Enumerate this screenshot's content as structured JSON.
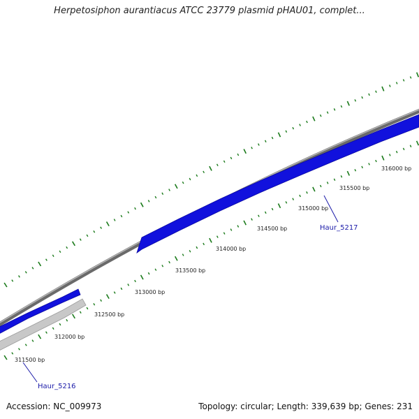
{
  "map": {
    "title": "Herpetosiphon aurantiacus ATCC 23779 plasmid pHAU01, complet...",
    "colors": {
      "backbone": "#8a8a8a",
      "gene_forward": "#1111dd",
      "gene_reverse": "#c8c8c8",
      "ticks": "#1a7a1a",
      "gene_label": "#1a1aa8"
    },
    "tick_labels": [
      "311500 bp",
      "312000 bp",
      "312500 bp",
      "313000 bp",
      "313500 bp",
      "314000 bp",
      "314500 bp",
      "315000 bp",
      "315500 bp",
      "316000 bp"
    ],
    "genes": [
      {
        "name": "Haur_5216",
        "strand": "reverse"
      },
      {
        "name": "Haur_5217",
        "strand": "forward"
      }
    ],
    "footer": {
      "accession": "Accession: NC_009973",
      "topology": "Topology: circular; Length: 339,639 bp; Genes: 231"
    }
  }
}
